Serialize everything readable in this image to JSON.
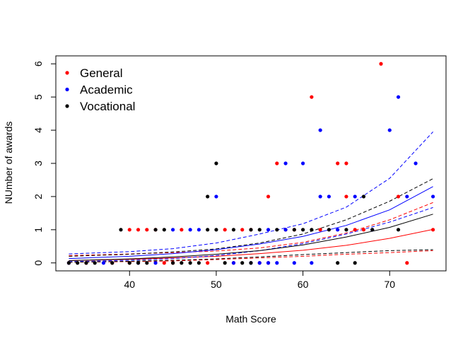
{
  "chart_data": {
    "type": "scatter",
    "xlabel": "Math Score",
    "ylabel": "NUmber of awards",
    "xlim": [
      31.5,
      76.5
    ],
    "ylim": [
      -0.24,
      6.24
    ],
    "xticks": [
      40,
      50,
      60,
      70
    ],
    "yticks": [
      0,
      1,
      2,
      3,
      4,
      5,
      6
    ],
    "legend_position": "top-left",
    "grid": false,
    "series": [
      {
        "name": "General",
        "color": "#ff0000",
        "points": [
          [
            33,
            0
          ],
          [
            35,
            0
          ],
          [
            38,
            0
          ],
          [
            40,
            0
          ],
          [
            40,
            1
          ],
          [
            41,
            1
          ],
          [
            42,
            1
          ],
          [
            43,
            1
          ],
          [
            44,
            0
          ],
          [
            45,
            0
          ],
          [
            46,
            1
          ],
          [
            49,
            0
          ],
          [
            51,
            1
          ],
          [
            52,
            0
          ],
          [
            53,
            1
          ],
          [
            54,
            1
          ],
          [
            55,
            0
          ],
          [
            56,
            0
          ],
          [
            56,
            2
          ],
          [
            57,
            3
          ],
          [
            58,
            1
          ],
          [
            59,
            1
          ],
          [
            61,
            5
          ],
          [
            62,
            1
          ],
          [
            64,
            3
          ],
          [
            65,
            3
          ],
          [
            65,
            2
          ],
          [
            66,
            1
          ],
          [
            67,
            1
          ],
          [
            69,
            6
          ],
          [
            71,
            2
          ],
          [
            72,
            0
          ],
          [
            75,
            1
          ]
        ],
        "fit": [
          [
            33,
            0.07
          ],
          [
            40,
            0.11
          ],
          [
            45,
            0.15
          ],
          [
            50,
            0.2
          ],
          [
            55,
            0.28
          ],
          [
            60,
            0.38
          ],
          [
            65,
            0.53
          ],
          [
            70,
            0.74
          ],
          [
            75,
            1.01
          ]
        ],
        "fit_lower": [
          [
            33,
            0.02
          ],
          [
            40,
            0.04
          ],
          [
            45,
            0.06
          ],
          [
            50,
            0.1
          ],
          [
            55,
            0.15
          ],
          [
            60,
            0.2
          ],
          [
            65,
            0.26
          ],
          [
            70,
            0.31
          ],
          [
            75,
            0.37
          ]
        ],
        "fit_upper": [
          [
            33,
            0.22
          ],
          [
            40,
            0.27
          ],
          [
            45,
            0.31
          ],
          [
            50,
            0.36
          ],
          [
            55,
            0.45
          ],
          [
            60,
            0.62
          ],
          [
            65,
            0.9
          ],
          [
            70,
            1.3
          ],
          [
            75,
            1.82
          ]
        ]
      },
      {
        "name": "Academic",
        "color": "#0000ff",
        "points": [
          [
            33,
            0
          ],
          [
            37,
            0
          ],
          [
            41,
            0
          ],
          [
            43,
            0
          ],
          [
            45,
            1
          ],
          [
            47,
            1
          ],
          [
            48,
            1
          ],
          [
            50,
            2
          ],
          [
            52,
            0
          ],
          [
            54,
            0
          ],
          [
            55,
            0
          ],
          [
            56,
            0
          ],
          [
            56,
            1
          ],
          [
            57,
            0
          ],
          [
            58,
            1
          ],
          [
            58,
            3
          ],
          [
            59,
            0
          ],
          [
            60,
            3
          ],
          [
            61,
            0
          ],
          [
            62,
            4
          ],
          [
            62,
            2
          ],
          [
            63,
            2
          ],
          [
            64,
            1
          ],
          [
            66,
            2
          ],
          [
            68,
            1
          ],
          [
            70,
            4
          ],
          [
            71,
            5
          ],
          [
            72,
            2
          ],
          [
            73,
            3
          ],
          [
            75,
            2
          ]
        ],
        "fit": [
          [
            33,
            0.13
          ],
          [
            40,
            0.2
          ],
          [
            45,
            0.28
          ],
          [
            50,
            0.4
          ],
          [
            55,
            0.57
          ],
          [
            60,
            0.8
          ],
          [
            65,
            1.13
          ],
          [
            70,
            1.6
          ],
          [
            75,
            2.3
          ]
        ],
        "fit_lower": [
          [
            33,
            0.04
          ],
          [
            40,
            0.08
          ],
          [
            45,
            0.13
          ],
          [
            50,
            0.22
          ],
          [
            55,
            0.37
          ],
          [
            60,
            0.58
          ],
          [
            65,
            0.87
          ],
          [
            70,
            1.23
          ],
          [
            75,
            1.67
          ]
        ],
        "fit_upper": [
          [
            33,
            0.27
          ],
          [
            40,
            0.34
          ],
          [
            45,
            0.43
          ],
          [
            50,
            0.6
          ],
          [
            55,
            0.87
          ],
          [
            60,
            1.18
          ],
          [
            65,
            1.68
          ],
          [
            70,
            2.55
          ],
          [
            75,
            3.95
          ]
        ]
      },
      {
        "name": "Vocational",
        "color": "#000000",
        "points": [
          [
            33,
            0
          ],
          [
            34,
            0
          ],
          [
            35,
            0
          ],
          [
            36,
            0
          ],
          [
            38,
            0
          ],
          [
            39,
            1
          ],
          [
            40,
            0
          ],
          [
            41,
            0
          ],
          [
            42,
            0
          ],
          [
            43,
            1
          ],
          [
            44,
            1
          ],
          [
            45,
            0
          ],
          [
            46,
            0
          ],
          [
            47,
            0
          ],
          [
            48,
            0
          ],
          [
            49,
            2
          ],
          [
            49,
            1
          ],
          [
            50,
            1
          ],
          [
            50,
            3
          ],
          [
            51,
            0
          ],
          [
            52,
            1
          ],
          [
            53,
            0
          ],
          [
            54,
            0
          ],
          [
            54,
            1
          ],
          [
            55,
            1
          ],
          [
            57,
            1
          ],
          [
            59,
            1
          ],
          [
            60,
            1
          ],
          [
            61,
            1
          ],
          [
            63,
            1
          ],
          [
            64,
            0
          ],
          [
            65,
            1
          ],
          [
            66,
            0
          ],
          [
            67,
            2
          ],
          [
            68,
            1
          ],
          [
            71,
            1
          ]
        ],
        "fit": [
          [
            33,
            0.07
          ],
          [
            40,
            0.12
          ],
          [
            45,
            0.18
          ],
          [
            50,
            0.26
          ],
          [
            55,
            0.37
          ],
          [
            60,
            0.54
          ],
          [
            65,
            0.78
          ],
          [
            70,
            1.07
          ],
          [
            75,
            1.47
          ]
        ],
        "fit_lower": [
          [
            33,
            0.02
          ],
          [
            40,
            0.05
          ],
          [
            45,
            0.08
          ],
          [
            50,
            0.12
          ],
          [
            55,
            0.18
          ],
          [
            60,
            0.25
          ],
          [
            65,
            0.31
          ],
          [
            70,
            0.37
          ],
          [
            75,
            0.4
          ]
        ],
        "fit_upper": [
          [
            33,
            0.2
          ],
          [
            40,
            0.26
          ],
          [
            45,
            0.33
          ],
          [
            50,
            0.42
          ],
          [
            55,
            0.6
          ],
          [
            60,
            0.87
          ],
          [
            65,
            1.3
          ],
          [
            70,
            1.86
          ],
          [
            75,
            2.54
          ]
        ]
      }
    ]
  }
}
